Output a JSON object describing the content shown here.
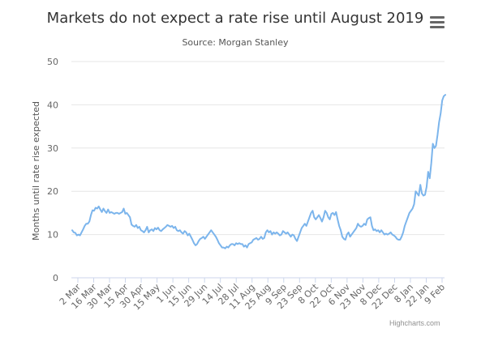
{
  "chart_data": {
    "type": "line",
    "title": "Markets do not expect a rate rise until August 2019",
    "subtitle": "Source: Morgan Stanley",
    "ylabel": "Months until rate rise expected",
    "xlabel": "",
    "ylim": [
      0,
      50
    ],
    "yticks": [
      0,
      10,
      20,
      30,
      40,
      50
    ],
    "xticks": [
      "2 Mar",
      "16 Mar",
      "30 Mar",
      "15 Apr",
      "30 Apr",
      "15 May",
      "1 Jun",
      "15 Jun",
      "29 Jun",
      "14 Jul",
      "28 Jul",
      "11 Aug",
      "25 Aug",
      "9 Sep",
      "23 Sep",
      "8 Oct",
      "22 Oct",
      "6 Nov",
      "23 Nov",
      "8 Dec",
      "22 Dec",
      "8 Jan",
      "22 Jan",
      "9 Feb"
    ],
    "grid": true,
    "legend": "none",
    "series": [
      {
        "name": "Months until rate rise expected",
        "color": "#7cb5ec",
        "values": [
          11.0,
          10.5,
          10.4,
          9.8,
          10.0,
          9.8,
          10.5,
          11.2,
          12.0,
          12.5,
          12.5,
          13.0,
          14.5,
          15.6,
          15.5,
          16.2,
          16.0,
          16.5,
          15.8,
          15.2,
          16.0,
          15.4,
          15.0,
          15.8,
          15.0,
          15.2,
          15.0,
          14.8,
          15.0,
          15.0,
          14.8,
          15.0,
          15.2,
          16.0,
          14.8,
          15.0,
          14.5,
          14.0,
          12.3,
          12.0,
          11.8,
          12.2,
          11.5,
          11.8,
          11.0,
          10.8,
          10.5,
          11.0,
          11.8,
          10.5,
          11.0,
          11.2,
          10.8,
          11.5,
          11.2,
          11.6,
          11.0,
          10.8,
          11.2,
          11.5,
          11.8,
          12.2,
          12.0,
          11.8,
          12.0,
          11.5,
          11.8,
          11.0,
          10.8,
          11.0,
          10.5,
          10.2,
          10.8,
          10.5,
          9.8,
          10.2,
          9.5,
          8.8,
          8.0,
          7.5,
          7.8,
          8.5,
          9.0,
          9.2,
          9.5,
          9.0,
          9.5,
          10.0,
          10.5,
          11.0,
          10.5,
          10.0,
          9.5,
          8.8,
          8.0,
          7.5,
          7.0,
          7.0,
          6.8,
          7.2,
          7.0,
          7.5,
          7.8,
          7.8,
          7.5,
          8.0,
          7.8,
          8.0,
          7.8,
          7.8,
          7.2,
          7.5,
          7.0,
          7.8,
          8.0,
          8.2,
          8.8,
          9.0,
          9.2,
          8.8,
          9.0,
          9.5,
          9.0,
          9.2,
          10.5,
          11.0,
          10.5,
          10.8,
          10.0,
          10.5,
          10.2,
          10.5,
          10.2,
          9.8,
          10.0,
          10.8,
          10.5,
          10.2,
          10.5,
          10.0,
          9.5,
          10.0,
          9.8,
          9.0,
          8.5,
          9.5,
          10.5,
          11.5,
          12.0,
          12.5,
          12.0,
          13.0,
          14.0,
          15.0,
          15.5,
          14.0,
          13.5,
          14.0,
          14.5,
          13.8,
          13.0,
          14.0,
          15.5,
          15.0,
          14.0,
          13.5,
          14.8,
          15.0,
          14.5,
          15.2,
          13.5,
          12.0,
          11.0,
          9.5,
          9.0,
          8.8,
          10.0,
          10.5,
          9.5,
          10.0,
          10.5,
          11.0,
          11.5,
          12.5,
          12.0,
          11.8,
          12.0,
          12.5,
          12.2,
          13.5,
          13.8,
          14.0,
          12.0,
          11.0,
          11.2,
          10.8,
          11.0,
          10.5,
          11.0,
          10.5,
          10.0,
          10.2,
          10.0,
          10.2,
          10.5,
          10.0,
          9.8,
          9.5,
          9.0,
          8.8,
          8.8,
          9.5,
          10.5,
          12.0,
          13.0,
          14.0,
          15.0,
          15.5,
          16.0,
          17.0,
          20.0,
          19.5,
          19.0,
          21.5,
          19.5,
          19.0,
          19.2,
          21.0,
          24.5,
          23.0,
          26.5,
          31.0,
          30.0,
          30.5,
          33.0,
          36.0,
          38.0,
          41.0,
          42.0,
          42.3
        ]
      }
    ]
  },
  "ui": {
    "credit": "Highcharts.com",
    "menu_icon": "hamburger-menu-icon"
  }
}
